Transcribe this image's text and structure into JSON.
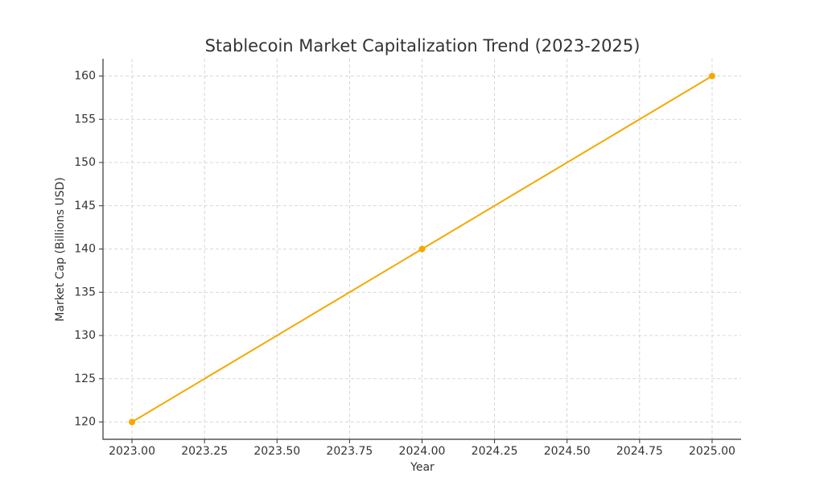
{
  "chart_data": {
    "type": "line",
    "title": "Stablecoin Market Capitalization Trend (2023-2025)",
    "x_label": "Year",
    "y_label": "Market Cap (Billions USD)",
    "x": [
      2023,
      2024,
      2025
    ],
    "series": [
      {
        "color": "#f5a800",
        "values": [
          120,
          140,
          160
        ]
      }
    ],
    "xlim": [
      2022.9,
      2025.1
    ],
    "xticks": [
      {
        "value": 2023,
        "label": "2023.00"
      },
      {
        "value": 2023.25,
        "label": "2023.25"
      },
      {
        "value": 2023.5,
        "label": "2023.50"
      },
      {
        "value": 2023.75,
        "label": "2023.75"
      },
      {
        "value": 2024,
        "label": "2024.00"
      },
      {
        "value": 2024.25,
        "label": "2024.25"
      },
      {
        "value": 2024.5,
        "label": "2024.50"
      },
      {
        "value": 2024.75,
        "label": "2024.75"
      },
      {
        "value": 2025,
        "label": "2025.00"
      }
    ],
    "ylim": [
      118,
      162
    ],
    "yticks": [
      120,
      125,
      130,
      135,
      140,
      145,
      150,
      155,
      160
    ],
    "grid": true
  }
}
